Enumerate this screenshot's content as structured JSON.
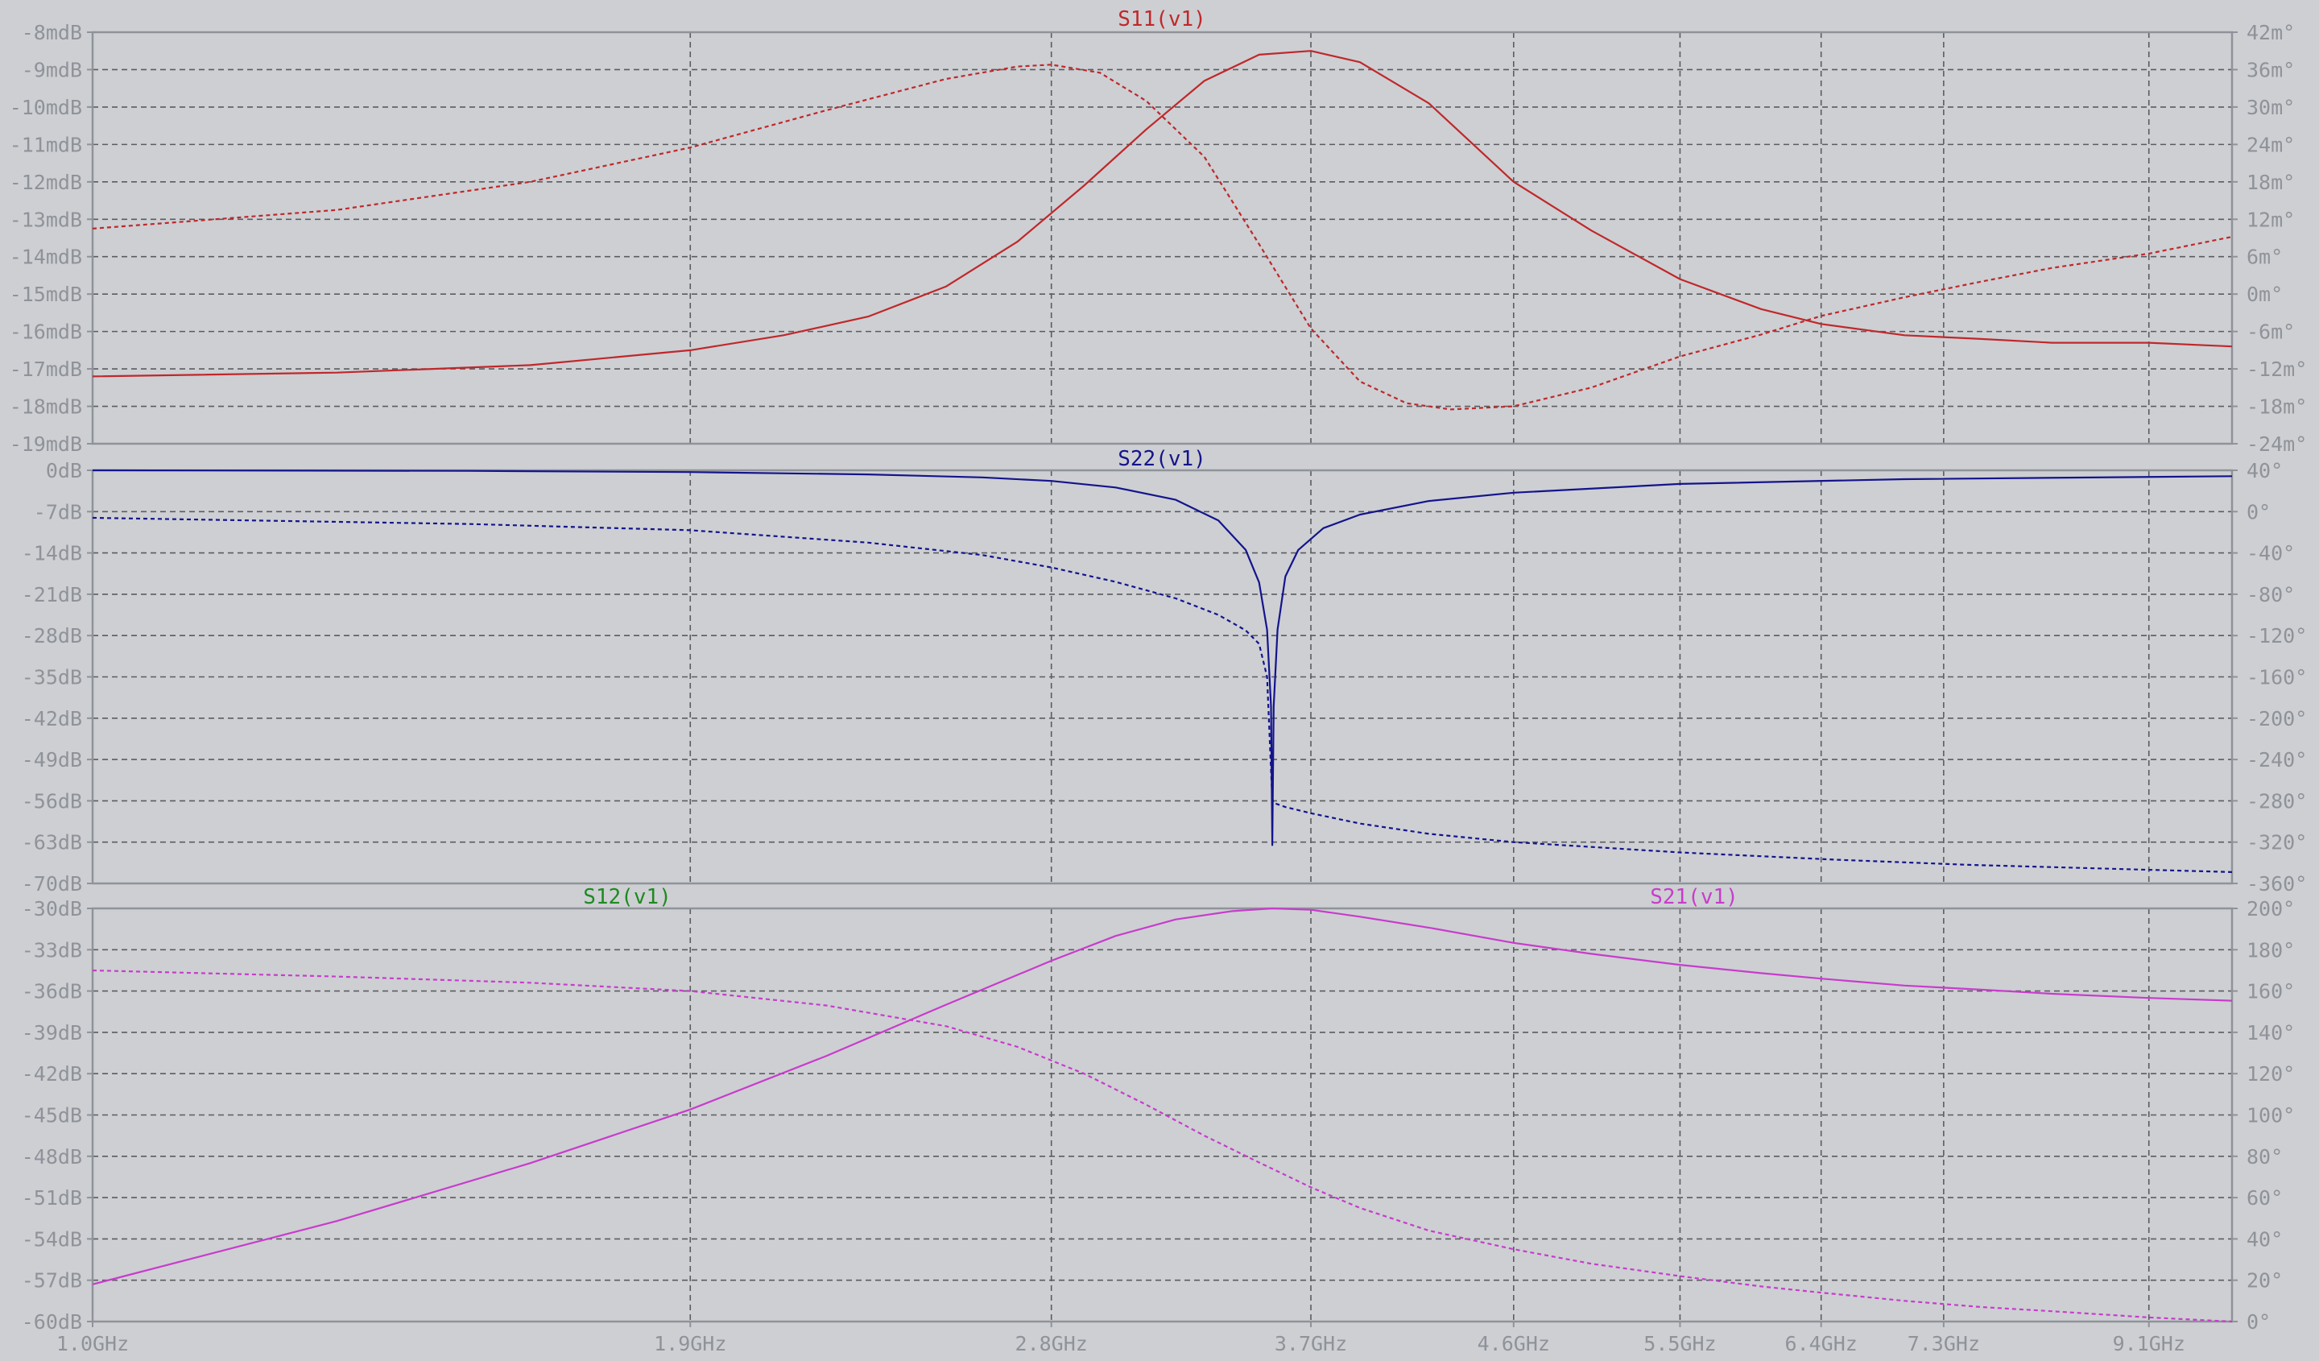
{
  "window": {
    "background": "#cdcfd3",
    "grid_color": "#5a5c60",
    "frame_color": "#8f9399"
  },
  "x_axis": {
    "scale": "log",
    "range_ghz": [
      1.0,
      9.95
    ],
    "ticks": [
      {
        "v": 1.0,
        "label": "1.0GHz"
      },
      {
        "v": 1.9,
        "label": "1.9GHz"
      },
      {
        "v": 2.8,
        "label": "2.8GHz"
      },
      {
        "v": 3.7,
        "label": "3.7GHz"
      },
      {
        "v": 4.6,
        "label": "4.6GHz"
      },
      {
        "v": 5.5,
        "label": "5.5GHz"
      },
      {
        "v": 6.4,
        "label": "6.4GHz"
      },
      {
        "v": 7.3,
        "label": "7.3GHz"
      },
      {
        "v": 9.1,
        "label": "9.1GHz"
      }
    ]
  },
  "chart_data": [
    {
      "type": "line",
      "title": "S11(v1)",
      "title_color": "#c0282a",
      "ylim": [
        -19,
        -8
      ],
      "y2lim": [
        -24,
        42
      ],
      "y_ticks": [
        "-8mdB",
        "-9mdB",
        "-10mdB",
        "-11mdB",
        "-12mdB",
        "-13mdB",
        "-14mdB",
        "-15mdB",
        "-16mdB",
        "-17mdB",
        "-18mdB",
        "-19mdB"
      ],
      "y2_ticks": [
        "42m°",
        "36m°",
        "30m°",
        "24m°",
        "18m°",
        "12m°",
        "6m°",
        "0m°",
        "-6m°",
        "-12m°",
        "-18m°",
        "-24m°"
      ],
      "series": [
        {
          "name": "S11(v1)",
          "quantity": "magnitude",
          "color": "#c0282a",
          "dashed": false,
          "x": [
            1.0,
            1.3,
            1.6,
            1.9,
            2.1,
            2.3,
            2.5,
            2.7,
            2.9,
            3.1,
            3.3,
            3.5,
            3.7,
            3.9,
            4.2,
            4.6,
            5.0,
            5.5,
            6.0,
            6.4,
            7.0,
            7.6,
            8.2,
            9.1,
            9.95
          ],
          "y": [
            -17.2,
            -17.1,
            -16.9,
            -16.5,
            -16.1,
            -15.6,
            -14.8,
            -13.6,
            -12.1,
            -10.6,
            -9.3,
            -8.6,
            -8.5,
            -8.8,
            -9.9,
            -12.0,
            -13.3,
            -14.6,
            -15.4,
            -15.8,
            -16.1,
            -16.2,
            -16.3,
            -16.3,
            -16.4
          ]
        },
        {
          "name": "S11(v1)",
          "quantity": "phase",
          "color": "#c0282a",
          "dashed": true,
          "x": [
            1.0,
            1.3,
            1.6,
            1.9,
            2.2,
            2.5,
            2.7,
            2.8,
            2.95,
            3.1,
            3.3,
            3.5,
            3.7,
            3.9,
            4.1,
            4.3,
            4.6,
            5.0,
            5.5,
            6.0,
            6.4,
            7.0,
            7.6,
            8.2,
            9.1,
            9.95
          ],
          "y": [
            10.5,
            13.5,
            18.0,
            23.5,
            29.5,
            34.5,
            36.5,
            36.8,
            35.5,
            31.0,
            22.0,
            8.0,
            -5.5,
            -14.0,
            -17.5,
            -18.5,
            -18.0,
            -15.0,
            -10.0,
            -6.5,
            -3.5,
            -0.5,
            2.0,
            4.2,
            6.5,
            9.2
          ]
        }
      ]
    },
    {
      "type": "line",
      "title": "S22(v1)",
      "title_color": "#14148c",
      "ylim": [
        -70,
        0
      ],
      "y2lim": [
        -360,
        40
      ],
      "y_ticks": [
        "0dB",
        "-7dB",
        "-14dB",
        "-21dB",
        "-28dB",
        "-35dB",
        "-42dB",
        "-49dB",
        "-56dB",
        "-63dB",
        "-70dB"
      ],
      "y2_ticks": [
        "40°",
        "0°",
        "-40°",
        "-80°",
        "-120°",
        "-160°",
        "-200°",
        "-240°",
        "-280°",
        "-320°",
        "-360°"
      ],
      "series": [
        {
          "name": "S22(v1)",
          "quantity": "magnitude",
          "color": "#14148c",
          "dashed": false,
          "x": [
            1.0,
            1.5,
            1.9,
            2.3,
            2.6,
            2.8,
            3.0,
            3.2,
            3.35,
            3.45,
            3.5,
            3.53,
            3.545,
            3.55,
            3.555,
            3.57,
            3.6,
            3.65,
            3.75,
            3.9,
            4.2,
            4.6,
            5.5,
            7.0,
            9.95
          ],
          "y": [
            0,
            -0.1,
            -0.3,
            -0.7,
            -1.2,
            -1.8,
            -2.9,
            -5.0,
            -8.5,
            -13.5,
            -19.0,
            -27.0,
            -40.0,
            -63.5,
            -40.0,
            -27.0,
            -18.0,
            -13.5,
            -9.8,
            -7.5,
            -5.2,
            -3.8,
            -2.3,
            -1.5,
            -1.0
          ]
        },
        {
          "name": "S22(v1)",
          "quantity": "phase",
          "color": "#14148c",
          "dashed": true,
          "x": [
            1.0,
            1.5,
            1.9,
            2.3,
            2.6,
            2.8,
            3.0,
            3.2,
            3.35,
            3.45,
            3.5,
            3.53,
            3.545,
            3.55,
            3.555,
            3.6,
            3.7,
            3.9,
            4.2,
            4.6,
            5.5,
            6.5,
            7.5,
            9.95
          ],
          "y": [
            -6,
            -12,
            -18,
            -30,
            -42,
            -54,
            -68,
            -84,
            -100,
            -115,
            -128,
            -160,
            -250,
            -278,
            -282,
            -286,
            -292,
            -302,
            -312,
            -320,
            -330,
            -337,
            -342,
            -349
          ]
        }
      ]
    },
    {
      "type": "line",
      "title": "S21(v1)",
      "title_color": "#c83ccc",
      "extra_titles": [
        {
          "text": "S12(v1)",
          "color": "#1f8a1f"
        }
      ],
      "ylim": [
        -60,
        -30
      ],
      "y2lim": [
        0,
        200
      ],
      "y_ticks": [
        "-30dB",
        "-33dB",
        "-36dB",
        "-39dB",
        "-42dB",
        "-45dB",
        "-48dB",
        "-51dB",
        "-54dB",
        "-57dB",
        "-60dB"
      ],
      "y2_ticks": [
        "200°",
        "180°",
        "160°",
        "140°",
        "120°",
        "100°",
        "80°",
        "60°",
        "40°",
        "20°",
        "0°"
      ],
      "series": [
        {
          "name": "S21(v1)",
          "quantity": "magnitude",
          "color": "#c83ccc",
          "dashed": false,
          "x": [
            1.0,
            1.3,
            1.6,
            1.9,
            2.2,
            2.5,
            2.8,
            3.0,
            3.2,
            3.4,
            3.55,
            3.7,
            3.9,
            4.2,
            4.6,
            5.0,
            5.5,
            6.0,
            6.4,
            7.0,
            7.6,
            8.2,
            9.1,
            9.95
          ],
          "y": [
            -57.3,
            -52.7,
            -48.5,
            -44.6,
            -40.7,
            -37.0,
            -33.8,
            -32.0,
            -30.8,
            -30.2,
            -30.0,
            -30.1,
            -30.6,
            -31.4,
            -32.5,
            -33.3,
            -34.1,
            -34.7,
            -35.1,
            -35.6,
            -35.9,
            -36.2,
            -36.5,
            -36.7
          ]
        },
        {
          "name": "S21(v1)",
          "quantity": "phase",
          "color": "#c83ccc",
          "dashed": true,
          "x": [
            1.0,
            1.3,
            1.6,
            1.9,
            2.2,
            2.5,
            2.7,
            2.9,
            3.1,
            3.3,
            3.5,
            3.7,
            3.9,
            4.2,
            4.6,
            5.0,
            5.5,
            6.0,
            6.4,
            7.0,
            7.6,
            8.2,
            9.1,
            9.95
          ],
          "y": [
            170,
            167,
            164,
            160,
            153,
            143,
            133,
            120,
            105,
            90,
            77,
            65,
            55,
            44,
            35,
            28,
            22,
            17,
            14,
            10,
            7,
            5,
            2,
            0
          ]
        }
      ]
    }
  ]
}
